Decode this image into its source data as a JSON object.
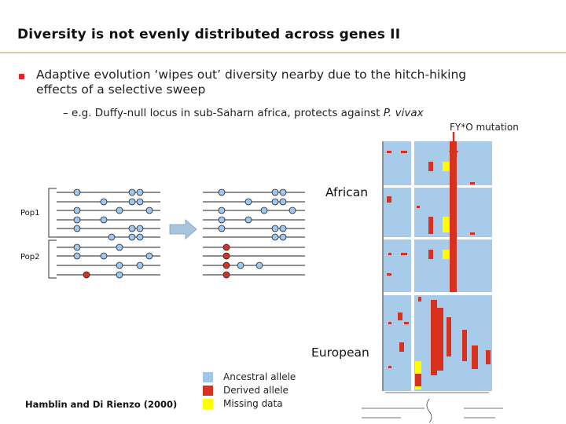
{
  "slide": {
    "title": "Diversity is not evenly distributed across genes II",
    "bullet": "Adaptive evolution ‘wipes out’ diversity nearby due to the hitch-hiking effects of a selective sweep",
    "sub_bullet_prefix": "– e.g. Duffy-null locus in sub-Saharn africa, protects against ",
    "sub_bullet_italic": "P. vivax",
    "citation": "Hamblin and Di Rienzo (2000)"
  },
  "diagram": {
    "pop1_label": "Pop1",
    "pop2_label": "Pop2",
    "mutation_label": "FY*O mutation",
    "african_label": "African",
    "european_label": "European"
  },
  "legend": {
    "items": [
      {
        "label": "Ancestral allele",
        "color": "#9ec7ea"
      },
      {
        "label": "Derived allele",
        "color": "#d9311f"
      },
      {
        "label": "Missing data",
        "color": "#ffff00"
      }
    ]
  },
  "colors": {
    "accent": "#e5222b",
    "ancestral": "#9ec7ea",
    "derived": "#d9311f",
    "missing": "#ffff00",
    "heatmap_bg": "#a8cbea"
  }
}
